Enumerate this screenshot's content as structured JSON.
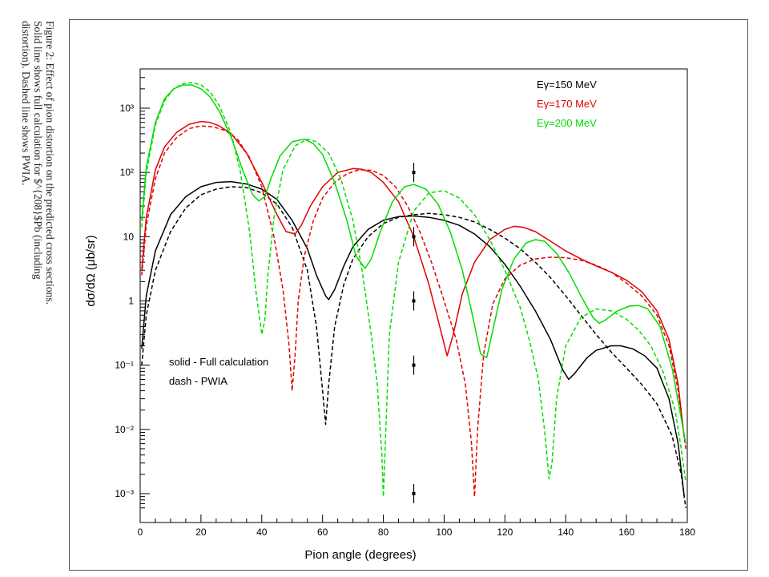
{
  "caption": "Figure 2: Effect of pion distortion on the predicted cross sections. Solid line shows full calculation for $^{208}$Pb (including distortion). Dashed line shows PWIA.",
  "chart_data": {
    "type": "line",
    "xlabel": "Pion angle (degrees)",
    "ylabel": "dσ/dΩ (μb/sr)",
    "xlim": [
      0,
      180
    ],
    "ylim_log10": [
      -3.3,
      3.5
    ],
    "y_scale": "log",
    "x_ticks": [
      0,
      20,
      40,
      60,
      80,
      100,
      120,
      140,
      160,
      180
    ],
    "y_ticks": [
      {
        "value": 0.001,
        "label": "10⁻³"
      },
      {
        "value": 0.01,
        "label": "10⁻²"
      },
      {
        "value": 0.1,
        "label": "10⁻¹"
      },
      {
        "value": 1,
        "label": "1"
      },
      {
        "value": 10,
        "label": "10"
      },
      {
        "value": 100,
        "label": "10²"
      },
      {
        "value": 1000,
        "label": "10³"
      }
    ],
    "legend_energy": [
      {
        "label": "Eγ=150 MeV",
        "color": "#000000"
      },
      {
        "label": "Eγ=170 MeV",
        "color": "#e00000"
      },
      {
        "label": "Eγ=200 MeV",
        "color": "#00dd00"
      }
    ],
    "legend_style": [
      "solid - Full calculation",
      "dash - PWIA"
    ],
    "series": [
      {
        "energy": "Eγ=150 MeV",
        "style": "solid",
        "color": "#000000",
        "x": [
          0.5,
          2,
          5,
          10,
          15,
          20,
          25,
          30,
          35,
          40,
          45,
          50,
          55,
          58,
          61,
          62,
          64,
          67,
          70,
          75,
          80,
          85,
          90,
          95,
          100,
          105,
          110,
          115,
          120,
          125,
          130,
          135,
          139,
          141,
          143,
          147,
          150,
          155,
          158,
          162,
          166,
          170,
          174,
          177,
          179
        ],
        "y": [
          0.18,
          1.2,
          6,
          22,
          42,
          60,
          70,
          72,
          66,
          55,
          38,
          18,
          6.5,
          2.5,
          1.2,
          1.05,
          1.5,
          3.5,
          7,
          13,
          18,
          20.5,
          21,
          20,
          18,
          15,
          11,
          7,
          3.7,
          1.7,
          0.7,
          0.25,
          0.085,
          0.06,
          0.075,
          0.13,
          0.17,
          0.2,
          0.2,
          0.18,
          0.14,
          0.09,
          0.03,
          0.006,
          0.0009
        ]
      },
      {
        "energy": "Eγ=150 MeV",
        "style": "dashed",
        "color": "#000000",
        "x": [
          0.5,
          2,
          5,
          10,
          15,
          20,
          25,
          30,
          35,
          40,
          45,
          50,
          55,
          58,
          60,
          61,
          62,
          64,
          67,
          70,
          75,
          80,
          85,
          90,
          95,
          100,
          105,
          110,
          115,
          120,
          125,
          130,
          135,
          140,
          145,
          150,
          155,
          160,
          165,
          170,
          175,
          178,
          179.5
        ],
        "y": [
          0.1,
          0.6,
          3,
          12,
          28,
          45,
          55,
          60,
          58,
          48,
          32,
          14,
          3,
          0.4,
          0.04,
          0.012,
          0.05,
          0.4,
          1.8,
          4.5,
          10,
          16,
          20,
          22,
          23,
          22,
          20,
          17,
          13,
          9.5,
          6.5,
          4,
          2.3,
          1.2,
          0.6,
          0.3,
          0.16,
          0.09,
          0.05,
          0.025,
          0.008,
          0.002,
          0.0006
        ]
      },
      {
        "energy": "Eγ=170 MeV",
        "style": "solid",
        "color": "#e00000",
        "x": [
          0.5,
          2,
          5,
          8,
          12,
          16,
          20,
          23,
          26,
          30,
          35,
          40,
          45,
          48,
          51,
          53,
          56,
          60,
          65,
          70,
          73,
          76,
          80,
          85,
          90,
          95,
          98,
          101,
          103,
          106,
          110,
          115,
          120,
          123,
          126,
          130,
          135,
          140,
          145,
          150,
          155,
          160,
          165,
          170,
          174,
          177,
          179
        ],
        "y": [
          3,
          20,
          110,
          250,
          420,
          560,
          620,
          600,
          530,
          400,
          200,
          70,
          22,
          12,
          11,
          15,
          30,
          60,
          100,
          115,
          112,
          100,
          70,
          35,
          10,
          1.8,
          0.5,
          0.14,
          0.3,
          1.3,
          4,
          9,
          13,
          14.5,
          14,
          12,
          8.5,
          6,
          4.5,
          3.5,
          2.8,
          2.1,
          1.4,
          0.7,
          0.25,
          0.05,
          0.0075
        ]
      },
      {
        "energy": "Eγ=170 MeV",
        "style": "dashed",
        "color": "#e00000",
        "x": [
          0.5,
          2,
          5,
          8,
          12,
          16,
          20,
          24,
          28,
          32,
          36,
          40,
          44,
          47,
          49,
          50,
          51,
          52,
          54,
          57,
          60,
          64,
          68,
          72,
          76,
          80,
          84,
          88,
          92,
          96,
          100,
          104,
          107,
          109,
          110,
          111,
          113,
          116,
          120,
          125,
          130,
          135,
          140,
          145,
          150,
          155,
          160,
          165,
          170,
          174,
          177,
          179.5
        ],
        "y": [
          2.5,
          15,
          80,
          200,
          350,
          480,
          530,
          510,
          450,
          330,
          170,
          60,
          10,
          1.5,
          0.2,
          0.04,
          0.15,
          1,
          5,
          18,
          40,
          70,
          95,
          110,
          108,
          90,
          60,
          30,
          12,
          3.8,
          1,
          0.25,
          0.05,
          0.006,
          0.0009,
          0.01,
          0.15,
          0.9,
          2.2,
          3.6,
          4.5,
          4.8,
          4.7,
          4.3,
          3.6,
          2.8,
          1.9,
          1.2,
          0.6,
          0.2,
          0.04,
          0.005
        ]
      },
      {
        "energy": "Eγ=200 MeV",
        "style": "solid",
        "color": "#00dd00",
        "x": [
          0.5,
          2,
          5,
          8,
          11,
          14,
          17,
          20,
          23,
          26,
          30,
          34,
          37,
          39,
          41,
          43,
          46,
          50,
          54,
          57,
          60,
          64,
          68,
          71,
          74,
          76,
          79,
          83,
          87,
          90,
          94,
          98,
          102,
          106,
          109,
          112,
          114,
          116,
          119,
          123,
          127,
          130,
          133,
          137,
          141,
          145,
          149,
          151,
          153,
          157,
          161,
          164,
          167,
          171,
          175,
          178,
          179.5
        ],
        "y": [
          18,
          120,
          600,
          1400,
          2000,
          2300,
          2300,
          2000,
          1500,
          900,
          350,
          100,
          45,
          36,
          42,
          80,
          180,
          300,
          330,
          280,
          190,
          70,
          18,
          5,
          3.2,
          4.5,
          12,
          35,
          60,
          65,
          55,
          32,
          12,
          3,
          0.7,
          0.15,
          0.13,
          0.35,
          1.5,
          4.5,
          8,
          9,
          8.5,
          5.5,
          2.8,
          1.2,
          0.55,
          0.45,
          0.5,
          0.7,
          0.83,
          0.85,
          0.75,
          0.4,
          0.09,
          0.015,
          0.006
        ]
      },
      {
        "energy": "Eγ=200 MeV",
        "style": "dashed",
        "color": "#00dd00",
        "x": [
          0.5,
          2,
          5,
          8,
          11,
          14,
          17,
          20,
          23,
          26,
          30,
          33,
          36,
          38,
          40,
          41,
          42,
          44,
          47,
          51,
          55,
          58,
          62,
          66,
          70,
          73,
          76,
          78,
          79.5,
          80,
          80.5,
          82,
          85,
          90,
          95,
          100,
          105,
          110,
          115,
          120,
          125,
          128,
          131,
          133,
          134.5,
          135.5,
          137,
          140,
          145,
          150,
          155,
          160,
          164,
          168,
          172,
          176,
          178,
          179.5
        ],
        "y": [
          14,
          100,
          550,
          1300,
          2000,
          2400,
          2500,
          2300,
          1800,
          1100,
          400,
          100,
          12,
          1.5,
          0.3,
          0.5,
          2.5,
          20,
          110,
          260,
          330,
          300,
          200,
          80,
          18,
          3,
          0.3,
          0.05,
          0.004,
          0.0009,
          0.004,
          0.3,
          4,
          25,
          48,
          52,
          40,
          22,
          9,
          3,
          0.8,
          0.25,
          0.06,
          0.01,
          0.0017,
          0.003,
          0.03,
          0.2,
          0.55,
          0.75,
          0.7,
          0.52,
          0.35,
          0.2,
          0.08,
          0.02,
          0.005,
          0.0015
        ]
      }
    ],
    "marker_points": [
      {
        "x": 90,
        "y": 100
      },
      {
        "x": 90,
        "y": 10
      },
      {
        "x": 90,
        "y": 1
      },
      {
        "x": 90,
        "y": 0.1
      },
      {
        "x": 90,
        "y": 0.001
      }
    ]
  }
}
